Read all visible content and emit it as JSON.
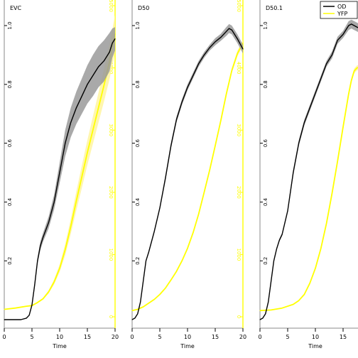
{
  "chart_data": {
    "type": "line",
    "xlabel": "Time",
    "xlim": [
      0,
      20
    ],
    "x_ticks": [
      0,
      5,
      10,
      15,
      20
    ],
    "left_axis": {
      "ylim": [
        0,
        1.05
      ],
      "ticks": [
        "0.2",
        "0.4",
        "0.6",
        "0.8",
        "1.0"
      ],
      "tick_values": [
        0.2,
        0.4,
        0.6,
        0.8,
        1.0
      ]
    },
    "right_axis": {
      "ylim": [
        0,
        5000
      ],
      "ticks": [
        "0",
        "1000",
        "2000",
        "3000",
        "4000",
        "5000"
      ],
      "tick_values": [
        0,
        1000,
        2000,
        3000,
        4000,
        5000
      ]
    },
    "colors": {
      "OD": "#000000",
      "OD_band": "#9a9a9a",
      "YFP": "#ffff00",
      "YFP_band": "#fff5a0",
      "frame": "#888888"
    },
    "legend": {
      "position": "top-right",
      "entries": [
        {
          "label": "OD",
          "color": "#000000"
        },
        {
          "label": "YFP",
          "color": "#ffff00"
        }
      ]
    },
    "panels": [
      {
        "title": "EVC",
        "series": [
          {
            "name": "OD",
            "axis": "left",
            "x": [
              0,
              1,
              2,
              3,
              4,
              4.5,
              5,
              5.5,
              6,
              6.5,
              7,
              8,
              9,
              10,
              11,
              12,
              13,
              14,
              15,
              16,
              17,
              18,
              19,
              19.5,
              20
            ],
            "y": [
              0.0,
              0.0,
              0.0,
              0.0,
              0.005,
              0.015,
              0.05,
              0.12,
              0.2,
              0.25,
              0.28,
              0.33,
              0.4,
              0.5,
              0.6,
              0.67,
              0.72,
              0.76,
              0.8,
              0.83,
              0.86,
              0.88,
              0.91,
              0.94,
              0.955
            ],
            "band": [
              0,
              0,
              0,
              0,
              0,
              0,
              0.005,
              0.01,
              0.01,
              0.015,
              0.015,
              0.02,
              0.025,
              0.035,
              0.045,
              0.05,
              0.055,
              0.06,
              0.065,
              0.07,
              0.07,
              0.07,
              0.065,
              0.05,
              0.04
            ]
          },
          {
            "name": "YFP",
            "axis": "right",
            "x": [
              0,
              2,
              4,
              5,
              6,
              7,
              8,
              9,
              10,
              11,
              12,
              13,
              14,
              15,
              16,
              17,
              18,
              19,
              20
            ],
            "y": [
              120,
              140,
              170,
              180,
              230,
              290,
              400,
              560,
              780,
              1080,
              1450,
              1860,
              2250,
              2640,
              3000,
              3360,
              3720,
              4100,
              4550
            ],
            "band": [
              0,
              0,
              0,
              0,
              10,
              15,
              25,
              40,
              60,
              90,
              120,
              150,
              180,
              200,
              220,
              240,
              260,
              280,
              300
            ]
          }
        ]
      },
      {
        "title": "D50",
        "series": [
          {
            "name": "OD",
            "axis": "left",
            "x": [
              0,
              0.5,
              1,
              1.5,
              2,
              2.5,
              3,
              4,
              5,
              6,
              7,
              8,
              9,
              10,
              11,
              12,
              13,
              14,
              15,
              16,
              17,
              17.5,
              18,
              19,
              20
            ],
            "y": [
              0.0,
              0.005,
              0.02,
              0.06,
              0.13,
              0.2,
              0.23,
              0.3,
              0.38,
              0.48,
              0.59,
              0.68,
              0.74,
              0.79,
              0.83,
              0.87,
              0.9,
              0.925,
              0.945,
              0.96,
              0.98,
              0.99,
              0.985,
              0.955,
              0.92
            ],
            "band": [
              0,
              0,
              0,
              0,
              0.005,
              0.005,
              0.005,
              0.005,
              0.005,
              0.01,
              0.01,
              0.01,
              0.01,
              0.01,
              0.01,
              0.01,
              0.01,
              0.01,
              0.012,
              0.012,
              0.015,
              0.015,
              0.015,
              0.015,
              0.015
            ]
          },
          {
            "name": "YFP",
            "axis": "right",
            "x": [
              0,
              1,
              2,
              3,
              4,
              5,
              6,
              7,
              8,
              9,
              10,
              11,
              12,
              13,
              14,
              15,
              16,
              17,
              18,
              19,
              20
            ],
            "y": [
              100,
              120,
              160,
              220,
              280,
              360,
              460,
              590,
              730,
              900,
              1100,
              1350,
              1650,
              2000,
              2360,
              2750,
              3150,
              3580,
              3960,
              4230,
              4400
            ],
            "band": [
              0,
              0,
              0,
              5,
              5,
              5,
              10,
              10,
              10,
              10,
              15,
              15,
              20,
              20,
              25,
              25,
              30,
              35,
              40,
              45,
              50
            ]
          }
        ]
      },
      {
        "title": "D50.1",
        "series": [
          {
            "name": "OD",
            "axis": "left",
            "x": [
              0,
              0.5,
              1,
              1.5,
              2,
              2.5,
              3,
              3.5,
              4,
              5,
              6,
              7,
              8,
              9,
              10,
              11,
              12,
              13,
              14,
              15,
              16,
              16.5,
              17,
              17.5,
              18,
              19,
              20
            ],
            "y": [
              0.0,
              0.005,
              0.02,
              0.06,
              0.13,
              0.2,
              0.24,
              0.27,
              0.29,
              0.37,
              0.5,
              0.6,
              0.67,
              0.72,
              0.77,
              0.82,
              0.87,
              0.9,
              0.95,
              0.97,
              1.0,
              1.005,
              1.0,
              0.995,
              0.99,
              0.97,
              0.94
            ],
            "band": [
              0,
              0,
              0,
              0,
              0.005,
              0.005,
              0.005,
              0.005,
              0.005,
              0.005,
              0.01,
              0.01,
              0.01,
              0.01,
              0.01,
              0.01,
              0.01,
              0.012,
              0.012,
              0.012,
              0.015,
              0.015,
              0.015,
              0.015,
              0.015,
              0.015,
              0.015
            ]
          },
          {
            "name": "YFP",
            "axis": "right",
            "x": [
              0,
              2,
              4,
              6,
              7,
              8,
              9,
              10,
              11,
              12,
              13,
              14,
              15,
              16,
              16.5,
              17,
              17.5,
              18,
              19,
              20
            ],
            "y": [
              100,
              110,
              140,
              200,
              260,
              360,
              540,
              780,
              1100,
              1500,
              1980,
              2500,
              3050,
              3580,
              3800,
              3950,
              4000,
              4010,
              4000,
              3990
            ],
            "band": [
              0,
              0,
              0,
              5,
              5,
              10,
              10,
              15,
              15,
              20,
              20,
              25,
              30,
              35,
              40,
              40,
              40,
              40,
              40,
              40
            ]
          }
        ]
      }
    ]
  }
}
